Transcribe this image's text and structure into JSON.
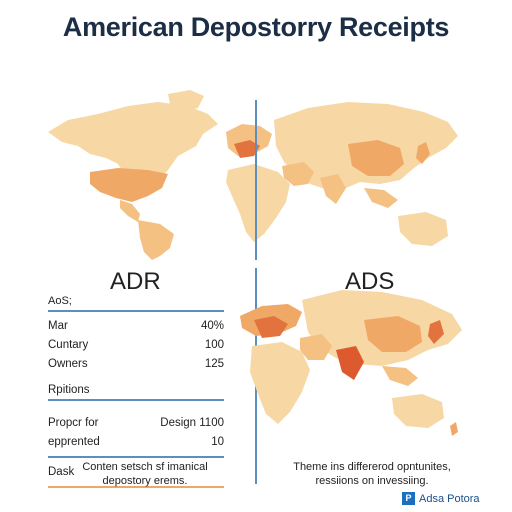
{
  "title": "American Depostorry Receipts",
  "left": {
    "heading": "ADR",
    "small_label": "AoS;",
    "rows_top": [
      {
        "label": "Mar",
        "value": "40%"
      },
      {
        "label": "Cuntary",
        "value": "100"
      },
      {
        "label": "Owners",
        "value": "125"
      }
    ],
    "section_label": "Rpitions",
    "rows_bottom": [
      {
        "label": "Propcr for",
        "value": "Design 1100"
      },
      {
        "label": "epprented",
        "value": "10"
      }
    ],
    "footer_label": "Dask",
    "caption_line1": "Conten setsch sf imanical",
    "caption_line2": "depostory erems."
  },
  "right": {
    "heading": "ADS",
    "caption_line1": "Theme ins differerod opntunites,",
    "caption_line2": "ressiions on invessiing."
  },
  "logo": {
    "text": "Adsa Potora",
    "icon": "logo-icon"
  },
  "colors": {
    "land_light": "#f7d7a4",
    "land_mid": "#f4c183",
    "land_dark": "#f0a867",
    "highlight": "#e2733f",
    "hot": "#dd5a2e",
    "divider": "#5b8fc0",
    "orange_rule": "#f0a669"
  }
}
